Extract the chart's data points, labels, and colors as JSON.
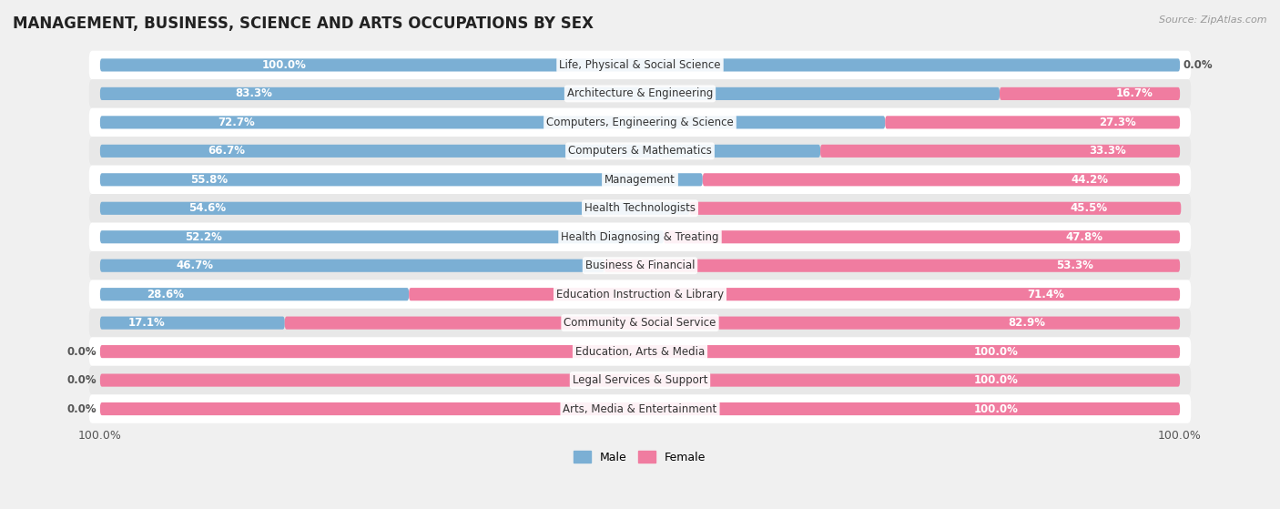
{
  "title": "MANAGEMENT, BUSINESS, SCIENCE AND ARTS OCCUPATIONS BY SEX",
  "source": "Source: ZipAtlas.com",
  "categories": [
    "Life, Physical & Social Science",
    "Architecture & Engineering",
    "Computers, Engineering & Science",
    "Computers & Mathematics",
    "Management",
    "Health Technologists",
    "Health Diagnosing & Treating",
    "Business & Financial",
    "Education Instruction & Library",
    "Community & Social Service",
    "Education, Arts & Media",
    "Legal Services & Support",
    "Arts, Media & Entertainment"
  ],
  "male": [
    100.0,
    83.3,
    72.7,
    66.7,
    55.8,
    54.6,
    52.2,
    46.7,
    28.6,
    17.1,
    0.0,
    0.0,
    0.0
  ],
  "female": [
    0.0,
    16.7,
    27.3,
    33.3,
    44.2,
    45.5,
    47.8,
    53.3,
    71.4,
    82.9,
    100.0,
    100.0,
    100.0
  ],
  "male_color": "#7bafd4",
  "female_color": "#f07ca0",
  "background_color": "#f0f0f0",
  "row_color_odd": "#ffffff",
  "row_color_even": "#e8e8e8",
  "label_color_inside": "#ffffff",
  "label_color_outside": "#555555",
  "cat_label_color": "#333333",
  "title_fontsize": 12,
  "label_fontsize": 8.5,
  "cat_fontsize": 8.5,
  "legend_male": "Male",
  "legend_female": "Female"
}
